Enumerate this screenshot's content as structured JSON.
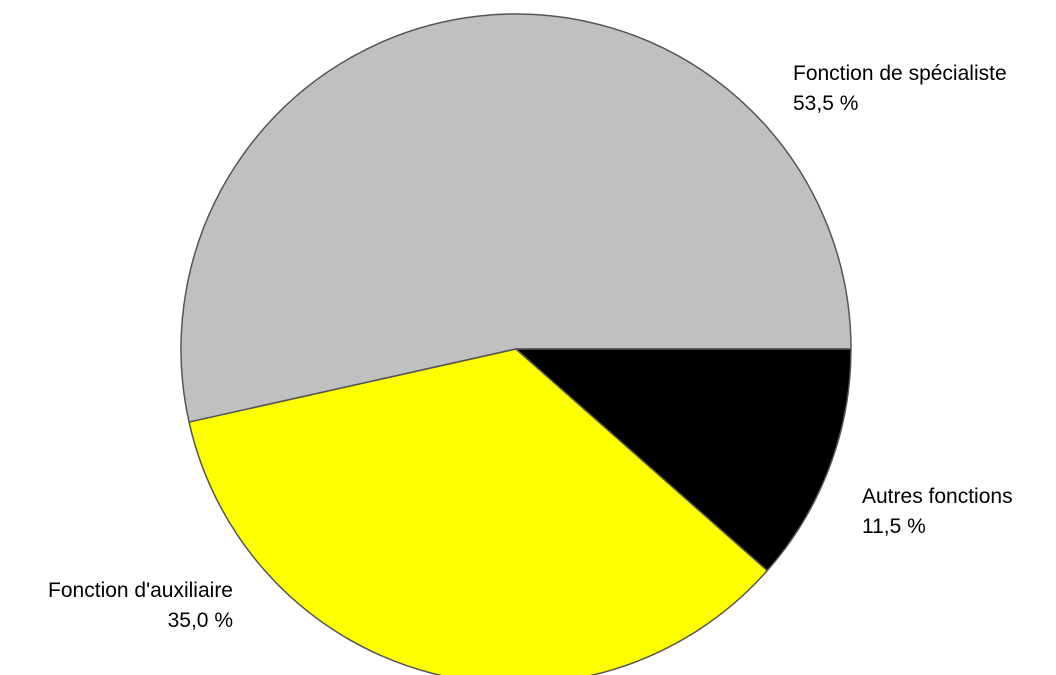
{
  "chart_data": {
    "type": "pie",
    "slices": [
      {
        "label": "Fonction de spécialiste",
        "value": 53.5,
        "value_label": "53,5 %",
        "color": "#c0c0c0"
      },
      {
        "label": "Fonction d'auxiliaire",
        "value": 35.0,
        "value_label": "35,0 %",
        "color": "#ffff00"
      },
      {
        "label": "Autres fonctions",
        "value": 11.5,
        "value_label": "11,5 %",
        "color": "#000000"
      }
    ],
    "legend": "none",
    "outline_color": "#555555"
  }
}
